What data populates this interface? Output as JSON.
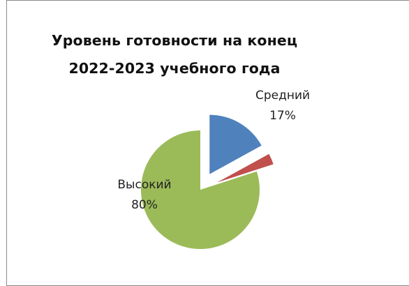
{
  "chart_data": {
    "type": "pie",
    "title_lines": [
      "Уровень готовности на конец",
      "2022-2023 учебного года"
    ],
    "slices": [
      {
        "name": "Средний",
        "value": 17,
        "label": "17%",
        "color": "#4f81bd",
        "exploded": true,
        "show_label": true
      },
      {
        "name": "",
        "value": 3,
        "label": "",
        "color": "#c0504d",
        "exploded": true,
        "show_label": false
      },
      {
        "name": "Высокий",
        "value": 80,
        "label": "80%",
        "color": "#9bbb59",
        "exploded": false,
        "show_label": true
      }
    ],
    "legend": "none"
  }
}
